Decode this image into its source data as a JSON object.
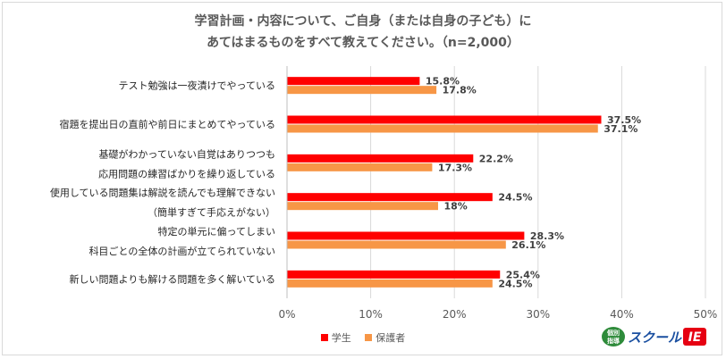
{
  "title_line1": "学習計画・内容について、ご自身（または自身の子ども）に",
  "title_line2": "あてはまるものをすべて教えてください。（n=2,000）",
  "colors": {
    "student": "#ff0000",
    "parent": "#f79646",
    "grid": "#d9d9d9",
    "text": "#595959"
  },
  "logo": {
    "icon_text_top": "個別",
    "icon_text_bottom": "指導",
    "wordmark": "スクール",
    "mark": "IE"
  },
  "chart_data": {
    "type": "bar",
    "orientation": "horizontal",
    "categories": [
      [
        "テスト勉強は一夜漬けでやっている"
      ],
      [
        "宿題を提出日の直前や前日にまとめてやっている"
      ],
      [
        "基礎がわかっていない自覚はありつつも",
        "応用問題の練習ばかりを繰り返している"
      ],
      [
        "使用している問題集は解説を読んでも理解できない",
        "（簡単すぎて手応えがない）"
      ],
      [
        "特定の単元に偏ってしまい",
        "科目ごとの全体の計画が立てられていない"
      ],
      [
        "新しい問題よりも解ける問題を多く解いている"
      ]
    ],
    "series": [
      {
        "name": "学生",
        "values": [
          15.8,
          37.5,
          22.2,
          24.5,
          28.3,
          25.4
        ],
        "labels": [
          "15.8%",
          "37.5%",
          "22.2%",
          "24.5%",
          "28.3%",
          "25.4%"
        ]
      },
      {
        "name": "保護者",
        "values": [
          17.8,
          37.1,
          17.3,
          18,
          26.1,
          24.5
        ],
        "labels": [
          "17.8%",
          "37.1%",
          "17.3%",
          "18%",
          "26.1%",
          "24.5%"
        ]
      }
    ],
    "xlim": [
      0,
      50
    ],
    "xticks": [
      "0%",
      "10%",
      "20%",
      "30%",
      "40%",
      "50%"
    ],
    "grid": true,
    "legend_position": "bottom-center"
  }
}
